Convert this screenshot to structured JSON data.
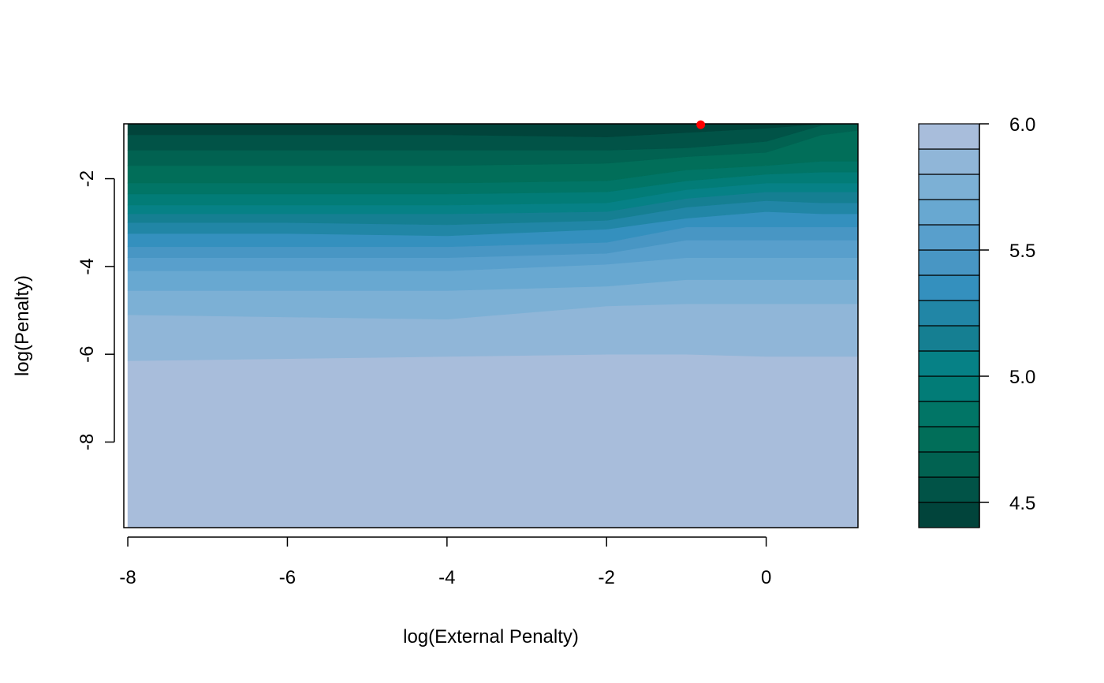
{
  "chart_data": {
    "type": "heatmap",
    "subtype": "filled-contour",
    "title": "",
    "xlabel": "log(External Penalty)",
    "ylabel": "log(Penalty)",
    "xlim": [
      -8.05,
      1.15
    ],
    "ylim": [
      -9.95,
      -0.75
    ],
    "xticks": [
      "-8",
      "-6",
      "-4",
      "-2",
      "0"
    ],
    "yticks": [
      "-2",
      "-4",
      "-6",
      "-8"
    ],
    "colorbar": {
      "ticks": [
        "4.5",
        "5.0",
        "5.5",
        "6.0"
      ],
      "range": [
        4.4,
        6.0
      ],
      "levels": [
        4.4,
        4.5,
        4.6,
        4.7,
        4.8,
        4.9,
        5.0,
        5.1,
        5.2,
        5.3,
        5.4,
        5.5,
        5.6,
        5.7,
        5.8,
        5.9,
        6.0
      ],
      "colors": [
        "#01443b",
        "#015347",
        "#016251",
        "#016e59",
        "#017566",
        "#027c77",
        "#068186",
        "#157f92",
        "#2186a6",
        "#3490be",
        "#4896c4",
        "#589fcc",
        "#68a8d1",
        "#7cb0d5",
        "#90b6d8",
        "#a8bddb"
      ]
    },
    "x": [
      -8,
      -6,
      -4,
      -2,
      -1,
      0,
      0.7,
      1.15
    ],
    "band_boundaries": [
      {
        "level": 5.9,
        "y": [
          -6.15,
          -6.1,
          -6.05,
          -6.0,
          -6.0,
          -6.05,
          -6.05,
          -6.05
        ]
      },
      {
        "level": 5.8,
        "y": [
          -5.1,
          -5.15,
          -5.2,
          -4.9,
          -4.85,
          -4.85,
          -4.85,
          -4.85
        ]
      },
      {
        "level": 5.7,
        "y": [
          -4.55,
          -4.55,
          -4.55,
          -4.45,
          -4.3,
          -4.3,
          -4.3,
          -4.3
        ]
      },
      {
        "level": 5.6,
        "y": [
          -4.1,
          -4.1,
          -4.1,
          -3.95,
          -3.8,
          -3.8,
          -3.8,
          -3.8
        ]
      },
      {
        "level": 5.5,
        "y": [
          -3.8,
          -3.8,
          -3.8,
          -3.7,
          -3.4,
          -3.4,
          -3.4,
          -3.4
        ]
      },
      {
        "level": 5.4,
        "y": [
          -3.55,
          -3.55,
          -3.55,
          -3.45,
          -3.1,
          -3.1,
          -3.1,
          -3.1
        ]
      },
      {
        "level": 5.3,
        "y": [
          -3.25,
          -3.25,
          -3.3,
          -3.15,
          -2.9,
          -2.75,
          -2.8,
          -2.8
        ]
      },
      {
        "level": 5.2,
        "y": [
          -3.0,
          -3.0,
          -3.05,
          -2.95,
          -2.65,
          -2.5,
          -2.55,
          -2.55
        ]
      },
      {
        "level": 5.1,
        "y": [
          -2.8,
          -2.8,
          -2.8,
          -2.75,
          -2.45,
          -2.3,
          -2.3,
          -2.3
        ]
      },
      {
        "level": 5.0,
        "y": [
          -2.6,
          -2.6,
          -2.6,
          -2.55,
          -2.25,
          -2.1,
          -2.1,
          -2.1
        ]
      },
      {
        "level": 4.9,
        "y": [
          -2.35,
          -2.35,
          -2.35,
          -2.3,
          -2.05,
          -1.9,
          -1.85,
          -1.85
        ]
      },
      {
        "level": 4.8,
        "y": [
          -2.1,
          -2.1,
          -2.1,
          -2.05,
          -1.8,
          -1.7,
          -1.6,
          -1.6
        ]
      },
      {
        "level": 4.7,
        "y": [
          -1.7,
          -1.7,
          -1.7,
          -1.65,
          -1.5,
          -1.4,
          -1.0,
          -0.9
        ]
      },
      {
        "level": 4.6,
        "y": [
          -1.35,
          -1.35,
          -1.35,
          -1.35,
          -1.3,
          -1.15,
          -0.78,
          -0.75
        ]
      },
      {
        "level": 4.5,
        "y": [
          -1.0,
          -1.0,
          -1.0,
          -1.05,
          -0.95,
          -0.85,
          -0.75,
          -0.75
        ]
      }
    ],
    "optimum_point": {
      "x": -0.82,
      "y": -0.77,
      "color": "#ff0000"
    }
  }
}
